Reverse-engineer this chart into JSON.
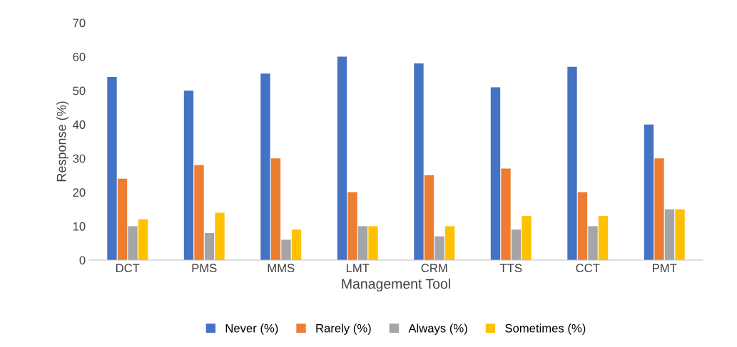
{
  "chart_data": {
    "type": "bar",
    "xlabel": "Management Tool",
    "ylabel": "Response (%)",
    "categories": [
      "DCT",
      "PMS",
      "MMS",
      "LMT",
      "CRM",
      "TTS",
      "CCT",
      "PMT"
    ],
    "series": [
      {
        "name": "Never (%)",
        "color": "#4472c4",
        "values": [
          54,
          50,
          55,
          60,
          58,
          51,
          57,
          40
        ]
      },
      {
        "name": "Rarely (%)",
        "color": "#ed7d31",
        "values": [
          24,
          28,
          30,
          20,
          25,
          27,
          20,
          30
        ]
      },
      {
        "name": "Always (%)",
        "color": "#a5a5a5",
        "values": [
          10,
          8,
          6,
          10,
          7,
          9,
          10,
          15
        ]
      },
      {
        "name": "Sometimes (%)",
        "color": "#ffc000",
        "values": [
          12,
          14,
          9,
          10,
          10,
          13,
          13,
          15
        ]
      }
    ],
    "ylim": [
      0,
      70
    ],
    "yticks": [
      0,
      10,
      20,
      30,
      40,
      50,
      60,
      70
    ],
    "grid": false,
    "legend": "bottom"
  }
}
